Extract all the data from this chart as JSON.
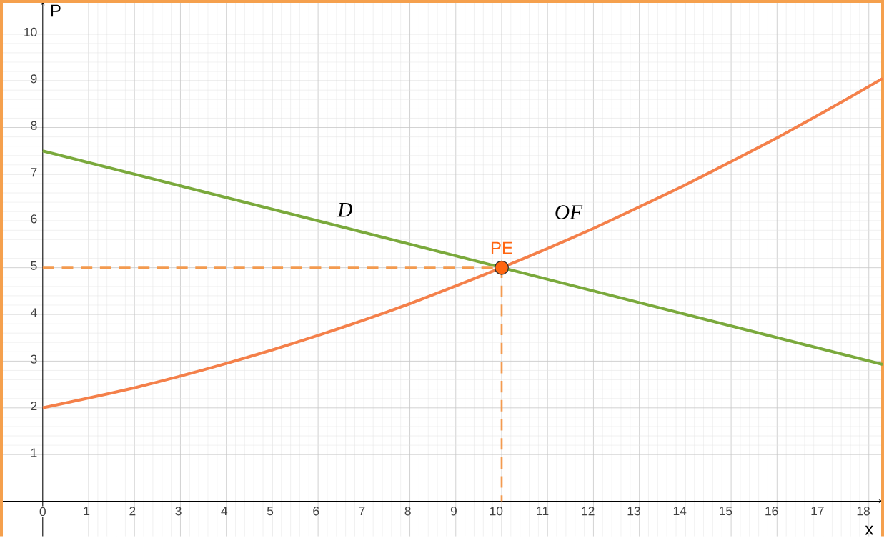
{
  "chart_data": {
    "type": "line",
    "xlabel": "x",
    "ylabel": "P",
    "xlim": [
      -0.9,
      18.3
    ],
    "ylim": [
      -0.75,
      10.7
    ],
    "xticks": [
      0,
      1,
      2,
      3,
      4,
      5,
      6,
      7,
      8,
      9,
      10,
      11,
      12,
      13,
      14,
      15,
      16,
      17,
      18
    ],
    "yticks": [
      1,
      2,
      3,
      4,
      5,
      6,
      7,
      8,
      9,
      10
    ],
    "grid": true,
    "series": [
      {
        "name": "D",
        "color": "#7aa93c",
        "x": [
          0,
          18.3
        ],
        "values": [
          7.5,
          2.93
        ]
      },
      {
        "name": "OF",
        "color": "#f4804a",
        "x": [
          0,
          1,
          2,
          3,
          4,
          5,
          6,
          7,
          8,
          9,
          10,
          11,
          12,
          13,
          14,
          15,
          16,
          17,
          18,
          18.3
        ],
        "values": [
          2,
          2.21,
          2.43,
          2.68,
          2.95,
          3.24,
          3.55,
          3.88,
          4.23,
          4.61,
          5.0,
          5.41,
          5.84,
          6.3,
          6.77,
          7.27,
          7.78,
          8.32,
          8.88,
          9.05
        ]
      },
      {
        "type": "line",
        "line_style": "dashed",
        "color": "#f39a4f",
        "x": [
          0,
          10,
          10
        ],
        "values": [
          5,
          5,
          0
        ]
      },
      {
        "type": "scatter",
        "name": "PE",
        "marker": "circle",
        "color": "#ff6611",
        "x": [
          10
        ],
        "values": [
          5
        ]
      }
    ]
  }
}
